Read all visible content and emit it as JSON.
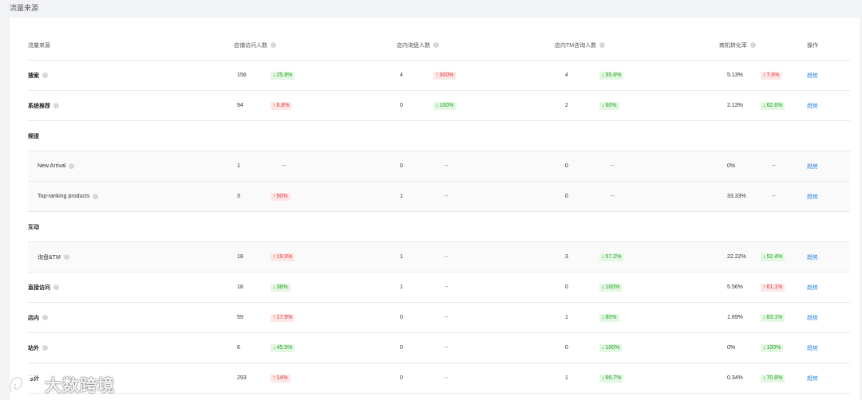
{
  "page_title": "流量来源",
  "headers": {
    "source": "流量来源",
    "visitors": "店铺访问人数",
    "inquiries": "店内询盘人数",
    "tm": "店内TM咨询人数",
    "conversion": "商机转化率",
    "action": "操作"
  },
  "action_label": "趋势",
  "rows": [
    {
      "type": "data",
      "name": "搜索",
      "help": true,
      "visitors": {
        "value": "156",
        "change": "25.8%",
        "dir": "down"
      },
      "inquiries": {
        "value": "4",
        "change": "300%",
        "dir": "up"
      },
      "tm": {
        "value": "4",
        "change": "55.6%",
        "dir": "down"
      },
      "conversion": {
        "value": "5.13%",
        "change": "7.6%",
        "dir": "up"
      }
    },
    {
      "type": "data",
      "name": "系统推荐",
      "help": true,
      "visitors": {
        "value": "94",
        "change": "6.8%",
        "dir": "up"
      },
      "inquiries": {
        "value": "0",
        "change": "100%",
        "dir": "down"
      },
      "tm": {
        "value": "2",
        "change": "60%",
        "dir": "down"
      },
      "conversion": {
        "value": "2.13%",
        "change": "62.6%",
        "dir": "down"
      }
    },
    {
      "type": "group",
      "name": "频道"
    },
    {
      "type": "sub",
      "name": "New Arrival",
      "help": true,
      "visitors": {
        "value": "1",
        "change": "--",
        "dir": "none"
      },
      "inquiries": {
        "value": "0",
        "change": "--",
        "dir": "none"
      },
      "tm": {
        "value": "0",
        "change": "--",
        "dir": "none"
      },
      "conversion": {
        "value": "0%",
        "change": "--",
        "dir": "none"
      }
    },
    {
      "type": "sub",
      "name": "Top-ranking products",
      "help": true,
      "visitors": {
        "value": "3",
        "change": "50%",
        "dir": "up"
      },
      "inquiries": {
        "value": "1",
        "change": "--",
        "dir": "none"
      },
      "tm": {
        "value": "0",
        "change": "--",
        "dir": "none"
      },
      "conversion": {
        "value": "33.33%",
        "change": "--",
        "dir": "none"
      }
    },
    {
      "type": "group",
      "name": "互动"
    },
    {
      "type": "sub",
      "name": "询盘&TM",
      "help": true,
      "visitors": {
        "value": "18",
        "change": "19.9%",
        "dir": "up"
      },
      "inquiries": {
        "value": "1",
        "change": "--",
        "dir": "none"
      },
      "tm": {
        "value": "3",
        "change": "57.2%",
        "dir": "down"
      },
      "conversion": {
        "value": "22.22%",
        "change": "52.4%",
        "dir": "down"
      }
    },
    {
      "type": "data",
      "name": "直接访问",
      "help": true,
      "visitors": {
        "value": "18",
        "change": "38%",
        "dir": "down"
      },
      "inquiries": {
        "value": "1",
        "change": "--",
        "dir": "none"
      },
      "tm": {
        "value": "0",
        "change": "100%",
        "dir": "down"
      },
      "conversion": {
        "value": "5.56%",
        "change": "61.1%",
        "dir": "up"
      }
    },
    {
      "type": "data",
      "name": "店内",
      "help": true,
      "visitors": {
        "value": "59",
        "change": "17.9%",
        "dir": "up"
      },
      "inquiries": {
        "value": "0",
        "change": "--",
        "dir": "none"
      },
      "tm": {
        "value": "1",
        "change": "80%",
        "dir": "down"
      },
      "conversion": {
        "value": "1.69%",
        "change": "83.1%",
        "dir": "down"
      }
    },
    {
      "type": "data",
      "name": "站外",
      "help": true,
      "visitors": {
        "value": "6",
        "change": "45.5%",
        "dir": "down"
      },
      "inquiries": {
        "value": "0",
        "change": "--",
        "dir": "none"
      },
      "tm": {
        "value": "0",
        "change": "100%",
        "dir": "down"
      },
      "conversion": {
        "value": "0%",
        "change": "100%",
        "dir": "down"
      }
    },
    {
      "type": "data",
      "name": "总计",
      "help": false,
      "visitors": {
        "value": "293",
        "change": "14%",
        "dir": "up"
      },
      "inquiries": {
        "value": "0",
        "change": "--",
        "dir": "none"
      },
      "tm": {
        "value": "1",
        "change": "66.7%",
        "dir": "down"
      },
      "conversion": {
        "value": "0.34%",
        "change": "70.8%",
        "dir": "down"
      }
    }
  ],
  "watermark": "大数跨境",
  "colors": {
    "up": "#e0393e",
    "down": "#23a323",
    "link": "#2f86e3"
  }
}
